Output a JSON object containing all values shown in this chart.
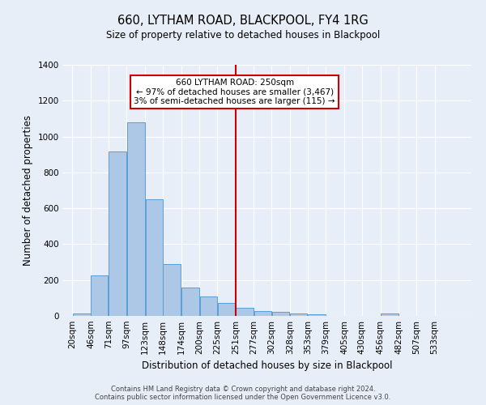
{
  "title": "660, LYTHAM ROAD, BLACKPOOL, FY4 1RG",
  "subtitle": "Size of property relative to detached houses in Blackpool",
  "xlabel": "Distribution of detached houses by size in Blackpool",
  "ylabel": "Number of detached properties",
  "bin_labels": [
    "20sqm",
    "46sqm",
    "71sqm",
    "97sqm",
    "123sqm",
    "148sqm",
    "174sqm",
    "200sqm",
    "225sqm",
    "251sqm",
    "277sqm",
    "302sqm",
    "328sqm",
    "353sqm",
    "379sqm",
    "405sqm",
    "430sqm",
    "456sqm",
    "482sqm",
    "507sqm",
    "533sqm"
  ],
  "bar_heights": [
    15,
    228,
    915,
    1080,
    650,
    290,
    158,
    107,
    72,
    43,
    27,
    22,
    15,
    10,
    0,
    0,
    0,
    13,
    0,
    0,
    0
  ],
  "bin_edges": [
    20,
    46,
    71,
    97,
    123,
    148,
    174,
    200,
    225,
    251,
    277,
    302,
    328,
    353,
    379,
    405,
    430,
    456,
    482,
    507,
    533,
    559
  ],
  "bar_color": "#adc8e6",
  "bar_edge_color": "#5a9fd4",
  "vline_x": 251,
  "vline_color": "#cc0000",
  "annotation_text": "660 LYTHAM ROAD: 250sqm\n← 97% of detached houses are smaller (3,467)\n3% of semi-detached houses are larger (115) →",
  "annotation_box_color": "#ffffff",
  "annotation_box_edge": "#cc0000",
  "ylim": [
    0,
    1400
  ],
  "yticks": [
    0,
    200,
    400,
    600,
    800,
    1000,
    1200,
    1400
  ],
  "background_color": "#e8eef8",
  "footer_line1": "Contains HM Land Registry data © Crown copyright and database right 2024.",
  "footer_line2": "Contains public sector information licensed under the Open Government Licence v3.0."
}
